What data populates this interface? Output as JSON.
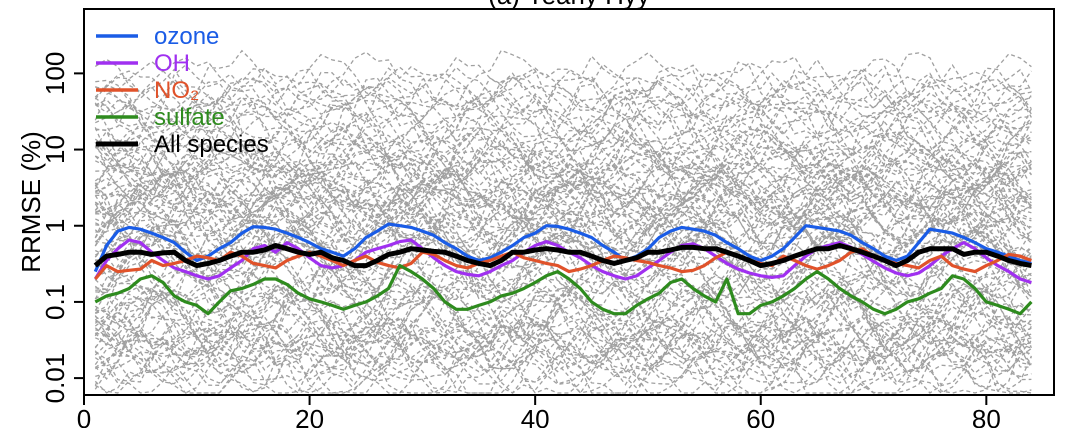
{
  "chart_data": {
    "type": "line",
    "title": "(a) Yearly Hyy",
    "xlabel": "",
    "ylabel": "RRMSE (%)",
    "xlim": [
      0,
      86
    ],
    "ylim": [
      0.006,
      700
    ],
    "y_scale": "log",
    "x_ticks": [
      0,
      20,
      40,
      60,
      80
    ],
    "y_ticks": [
      0.01,
      0.1,
      1,
      10,
      100
    ],
    "y_tick_labels": [
      "0.01",
      "0.1",
      "1",
      "10",
      "100"
    ],
    "background_color": "#a0a0a0",
    "grid": false,
    "legend_position": "top-left",
    "x": [
      1,
      2,
      3,
      4,
      5,
      6,
      7,
      8,
      9,
      10,
      11,
      12,
      13,
      14,
      15,
      16,
      17,
      18,
      19,
      20,
      21,
      22,
      23,
      24,
      25,
      26,
      27,
      28,
      29,
      30,
      31,
      32,
      33,
      34,
      35,
      36,
      37,
      38,
      39,
      40,
      41,
      42,
      43,
      44,
      45,
      46,
      47,
      48,
      49,
      50,
      51,
      52,
      53,
      54,
      55,
      56,
      57,
      58,
      59,
      60,
      61,
      62,
      63,
      64,
      65,
      66,
      67,
      68,
      69,
      70,
      71,
      72,
      73,
      74,
      75,
      76,
      77,
      78,
      79,
      80,
      81,
      82,
      83,
      84
    ],
    "series": [
      {
        "name": "ozone",
        "color": "#1a5ce6",
        "values": [
          0.25,
          0.55,
          0.85,
          0.95,
          0.9,
          0.8,
          0.7,
          0.6,
          0.45,
          0.35,
          0.4,
          0.5,
          0.6,
          0.8,
          0.97,
          0.95,
          0.9,
          0.8,
          0.7,
          0.6,
          0.5,
          0.45,
          0.4,
          0.5,
          0.7,
          0.85,
          1.05,
          1.0,
          0.95,
          0.85,
          0.75,
          0.6,
          0.5,
          0.4,
          0.35,
          0.38,
          0.45,
          0.55,
          0.7,
          0.8,
          1.0,
          0.98,
          0.9,
          0.8,
          0.7,
          0.55,
          0.45,
          0.35,
          0.4,
          0.5,
          0.7,
          0.85,
          0.95,
          0.9,
          0.85,
          0.75,
          0.6,
          0.5,
          0.4,
          0.35,
          0.4,
          0.5,
          0.7,
          1.0,
          0.95,
          0.9,
          0.85,
          0.75,
          0.6,
          0.5,
          0.4,
          0.35,
          0.4,
          0.6,
          0.9,
          0.85,
          0.8,
          0.7,
          0.6,
          0.5,
          0.45,
          0.4,
          0.35,
          0.32
        ]
      },
      {
        "name": "OH",
        "color": "#a030f0",
        "values": [
          0.2,
          0.35,
          0.5,
          0.65,
          0.6,
          0.45,
          0.35,
          0.28,
          0.25,
          0.22,
          0.2,
          0.22,
          0.28,
          0.35,
          0.5,
          0.55,
          0.45,
          0.6,
          0.5,
          0.38,
          0.3,
          0.28,
          0.3,
          0.35,
          0.45,
          0.5,
          0.55,
          0.62,
          0.65,
          0.5,
          0.38,
          0.3,
          0.25,
          0.23,
          0.22,
          0.25,
          0.3,
          0.35,
          0.45,
          0.55,
          0.62,
          0.55,
          0.45,
          0.38,
          0.3,
          0.25,
          0.22,
          0.2,
          0.22,
          0.28,
          0.35,
          0.45,
          0.55,
          0.58,
          0.5,
          0.4,
          0.32,
          0.27,
          0.24,
          0.22,
          0.21,
          0.22,
          0.3,
          0.4,
          0.5,
          0.55,
          0.6,
          0.52,
          0.42,
          0.34,
          0.28,
          0.24,
          0.22,
          0.24,
          0.3,
          0.4,
          0.5,
          0.6,
          0.5,
          0.38,
          0.3,
          0.25,
          0.2,
          0.18
        ]
      },
      {
        "name": "NO₂",
        "color": "#e0522a",
        "values": [
          0.2,
          0.3,
          0.25,
          0.26,
          0.27,
          0.35,
          0.3,
          0.32,
          0.35,
          0.4,
          0.38,
          0.35,
          0.45,
          0.4,
          0.32,
          0.3,
          0.28,
          0.35,
          0.4,
          0.45,
          0.4,
          0.35,
          0.3,
          0.35,
          0.4,
          0.33,
          0.3,
          0.28,
          0.32,
          0.45,
          0.42,
          0.35,
          0.3,
          0.28,
          0.32,
          0.35,
          0.4,
          0.45,
          0.38,
          0.35,
          0.32,
          0.3,
          0.25,
          0.27,
          0.3,
          0.35,
          0.4,
          0.38,
          0.35,
          0.33,
          0.3,
          0.28,
          0.25,
          0.26,
          0.3,
          0.38,
          0.45,
          0.4,
          0.35,
          0.32,
          0.3,
          0.4,
          0.35,
          0.3,
          0.27,
          0.3,
          0.35,
          0.45,
          0.5,
          0.4,
          0.35,
          0.32,
          0.3,
          0.28,
          0.35,
          0.4,
          0.3,
          0.27,
          0.25,
          0.3,
          0.35,
          0.42,
          0.4,
          0.35
        ]
      },
      {
        "name": "sulfate",
        "color": "#2e8b1e",
        "values": [
          0.1,
          0.12,
          0.13,
          0.15,
          0.2,
          0.22,
          0.18,
          0.12,
          0.1,
          0.09,
          0.07,
          0.1,
          0.14,
          0.15,
          0.17,
          0.2,
          0.2,
          0.17,
          0.13,
          0.11,
          0.1,
          0.09,
          0.08,
          0.09,
          0.1,
          0.12,
          0.15,
          0.3,
          0.25,
          0.2,
          0.15,
          0.1,
          0.08,
          0.08,
          0.09,
          0.1,
          0.12,
          0.13,
          0.15,
          0.18,
          0.22,
          0.25,
          0.2,
          0.15,
          0.1,
          0.08,
          0.07,
          0.07,
          0.09,
          0.11,
          0.13,
          0.18,
          0.2,
          0.15,
          0.12,
          0.1,
          0.2,
          0.07,
          0.07,
          0.09,
          0.1,
          0.12,
          0.15,
          0.2,
          0.25,
          0.2,
          0.15,
          0.12,
          0.1,
          0.08,
          0.07,
          0.08,
          0.1,
          0.11,
          0.13,
          0.15,
          0.22,
          0.2,
          0.15,
          0.1,
          0.09,
          0.08,
          0.07,
          0.1
        ]
      },
      {
        "name": "All species",
        "color": "#000000",
        "values": [
          0.3,
          0.4,
          0.42,
          0.45,
          0.45,
          0.42,
          0.44,
          0.45,
          0.35,
          0.3,
          0.32,
          0.35,
          0.4,
          0.45,
          0.45,
          0.48,
          0.55,
          0.5,
          0.45,
          0.42,
          0.45,
          0.38,
          0.35,
          0.3,
          0.3,
          0.35,
          0.42,
          0.45,
          0.5,
          0.48,
          0.46,
          0.45,
          0.4,
          0.35,
          0.32,
          0.3,
          0.35,
          0.45,
          0.45,
          0.48,
          0.5,
          0.48,
          0.45,
          0.45,
          0.4,
          0.35,
          0.32,
          0.35,
          0.38,
          0.45,
          0.45,
          0.48,
          0.52,
          0.52,
          0.5,
          0.5,
          0.45,
          0.4,
          0.35,
          0.3,
          0.32,
          0.35,
          0.4,
          0.45,
          0.5,
          0.5,
          0.55,
          0.5,
          0.45,
          0.4,
          0.35,
          0.3,
          0.35,
          0.45,
          0.5,
          0.5,
          0.5,
          0.42,
          0.45,
          0.45,
          0.4,
          0.35,
          0.32,
          0.3
        ]
      }
    ]
  }
}
